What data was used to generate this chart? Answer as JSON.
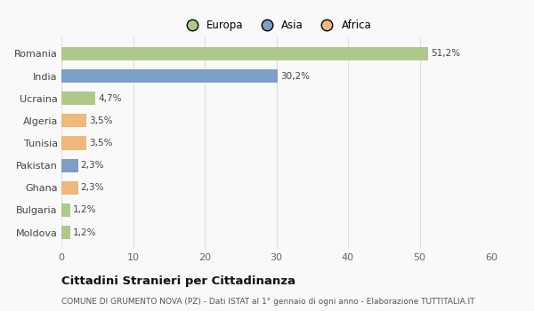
{
  "categories": [
    "Romania",
    "India",
    "Ucraina",
    "Algeria",
    "Tunisia",
    "Pakistan",
    "Ghana",
    "Bulgaria",
    "Moldova"
  ],
  "values": [
    51.2,
    30.2,
    4.7,
    3.5,
    3.5,
    2.3,
    2.3,
    1.2,
    1.2
  ],
  "labels": [
    "51,2%",
    "30,2%",
    "4,7%",
    "3,5%",
    "3,5%",
    "2,3%",
    "2,3%",
    "1,2%",
    "1,2%"
  ],
  "colors": [
    "#aec98a",
    "#7b9fc7",
    "#aec98a",
    "#f0b87a",
    "#f0b87a",
    "#7b9fc7",
    "#f0b87a",
    "#aec98a",
    "#aec98a"
  ],
  "legend_labels": [
    "Europa",
    "Asia",
    "Africa"
  ],
  "legend_colors": [
    "#aec98a",
    "#7b9fc7",
    "#f0b87a"
  ],
  "xlim": [
    0,
    60
  ],
  "xticks": [
    0,
    10,
    20,
    30,
    40,
    50,
    60
  ],
  "title": "Cittadini Stranieri per Cittadinanza",
  "subtitle": "COMUNE DI GRUMENTO NOVA (PZ) - Dati ISTAT al 1° gennaio di ogni anno - Elaborazione TUTTITALIA.IT",
  "bg_color": "#f9f9f9",
  "grid_color": "#e0e0e0",
  "bar_height": 0.6
}
